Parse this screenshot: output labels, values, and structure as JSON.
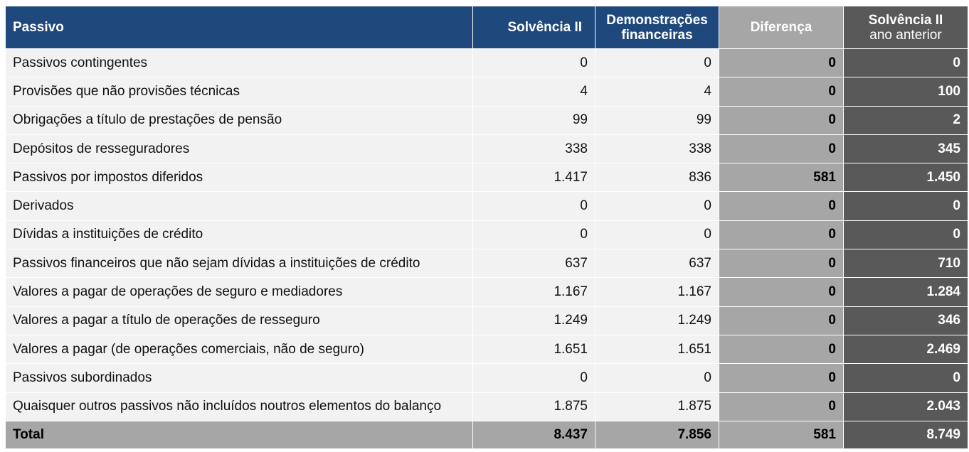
{
  "header": {
    "col_label": "Passivo",
    "col_sii": "Solvência II",
    "col_fin_line1": "Demonstrações",
    "col_fin_line2": "financeiras",
    "col_diff": "Diferença",
    "col_prev_line1": "Solvência II",
    "col_prev_line2": "ano anterior"
  },
  "colors": {
    "header_blue": "#1f497d",
    "diff_gray": "#a6a6a6",
    "prev_dark_gray": "#595959",
    "row_light": "#f2f2f2"
  },
  "rows": [
    {
      "label": "Passivos contingentes",
      "sii": "0",
      "fin": "0",
      "diff": "0",
      "prev": "0"
    },
    {
      "label": "Provisões que não provisões técnicas",
      "sii": "4",
      "fin": "4",
      "diff": "0",
      "prev": "100"
    },
    {
      "label": "Obrigações a título de prestações de pensão",
      "sii": "99",
      "fin": "99",
      "diff": "0",
      "prev": "2"
    },
    {
      "label": "Depósitos de resseguradores",
      "sii": "338",
      "fin": "338",
      "diff": "0",
      "prev": "345"
    },
    {
      "label": "Passivos por impostos diferidos",
      "sii": "1.417",
      "fin": "836",
      "diff": "581",
      "prev": "1.450"
    },
    {
      "label": "Derivados",
      "sii": "0",
      "fin": "0",
      "diff": "0",
      "prev": "0"
    },
    {
      "label": "Dívidas a instituições de crédito",
      "sii": "0",
      "fin": "0",
      "diff": "0",
      "prev": "0"
    },
    {
      "label": "Passivos financeiros que não sejam dívidas a instituições de crédito",
      "sii": "637",
      "fin": "637",
      "diff": "0",
      "prev": "710"
    },
    {
      "label": "Valores a pagar de operações de seguro e mediadores",
      "sii": "1.167",
      "fin": "1.167",
      "diff": "0",
      "prev": "1.284"
    },
    {
      "label": "Valores a pagar a título de operações de resseguro",
      "sii": "1.249",
      "fin": "1.249",
      "diff": "0",
      "prev": "346"
    },
    {
      "label": "Valores a pagar (de operações comerciais, não de seguro)",
      "sii": "1.651",
      "fin": "1.651",
      "diff": "0",
      "prev": "2.469"
    },
    {
      "label": "Passivos subordinados",
      "sii": "0",
      "fin": "0",
      "diff": "0",
      "prev": "0"
    },
    {
      "label": "Quaisquer outros passivos não incluídos noutros elementos do balanço",
      "sii": "1.875",
      "fin": "1.875",
      "diff": "0",
      "prev": "2.043"
    }
  ],
  "total": {
    "label": "Total",
    "sii": "8.437",
    "fin": "7.856",
    "diff": "581",
    "prev": "8.749"
  }
}
